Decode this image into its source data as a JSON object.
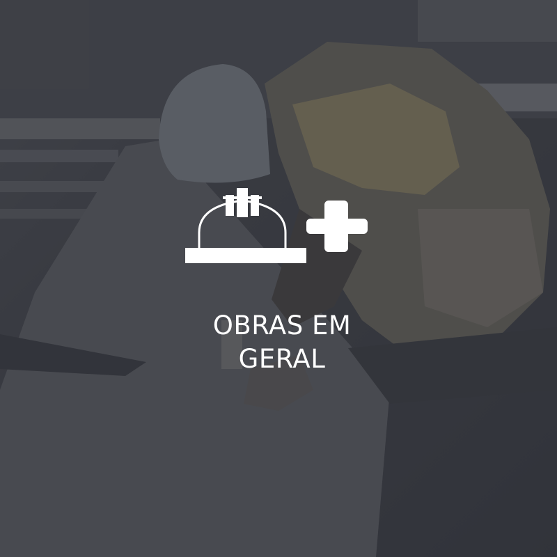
{
  "card": {
    "title_line1": "OBRAS EM",
    "title_line2": "GERAL",
    "icon": "hard-hat-plus-icon",
    "background_image": "construction-worker-photo",
    "colors": {
      "overlay": "#2a2c32",
      "text": "#ffffff",
      "icon": "#ffffff"
    }
  }
}
